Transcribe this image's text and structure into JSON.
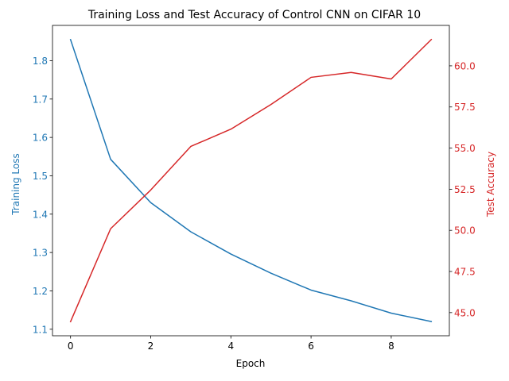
{
  "chart_data": {
    "type": "line",
    "title": "Training Loss and Test Accuracy of Control CNN on CIFAR 10",
    "xlabel": "Epoch",
    "x": [
      0,
      1,
      2,
      3,
      4,
      5,
      6,
      7,
      8,
      9
    ],
    "xticks": [
      0,
      2,
      4,
      6,
      8
    ],
    "xlim": [
      -0.45,
      9.45
    ],
    "grid": false,
    "series": [
      {
        "axis": "left",
        "color": "#1f77b4",
        "ylabel": "Training Loss",
        "values": [
          1.855,
          1.543,
          1.43,
          1.354,
          1.296,
          1.246,
          1.202,
          1.174,
          1.142,
          1.12
        ],
        "ylim": [
          1.083,
          1.892
        ],
        "yticks": [
          "1.1",
          "1.2",
          "1.3",
          "1.4",
          "1.5",
          "1.6",
          "1.7",
          "1.8"
        ]
      },
      {
        "axis": "right",
        "color": "#d62728",
        "ylabel": "Test Accuracy",
        "values": [
          44.45,
          50.1,
          52.45,
          55.1,
          56.15,
          57.65,
          59.3,
          59.6,
          59.2,
          61.6
        ],
        "ylim": [
          43.593,
          62.457
        ],
        "yticks": [
          "45.0",
          "47.5",
          "50.0",
          "52.5",
          "55.0",
          "57.5",
          "60.0"
        ]
      }
    ]
  }
}
